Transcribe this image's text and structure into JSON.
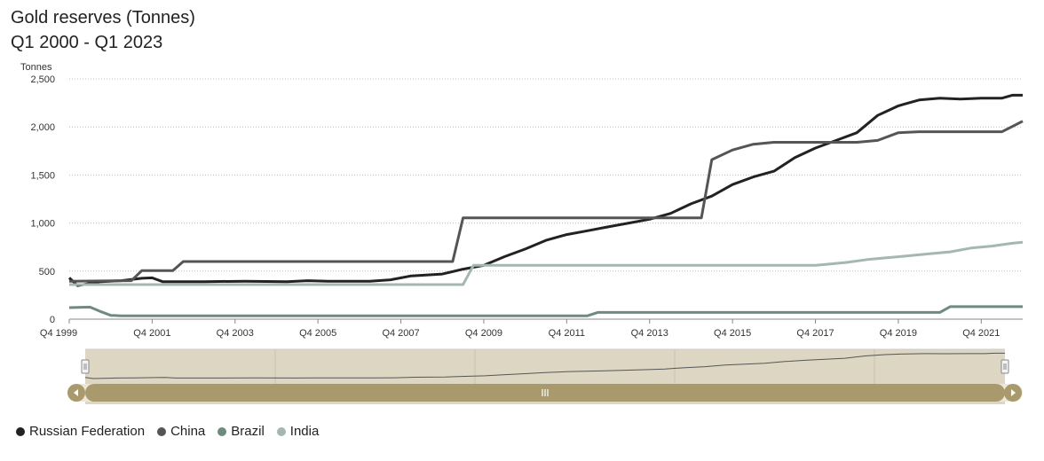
{
  "title": "Gold reserves (Tonnes)",
  "subtitle": "Q1 2000 - Q1 2023",
  "chart_data": {
    "type": "line",
    "ylabel": "Tonnes",
    "ylim": [
      0,
      2500
    ],
    "yticks": [
      0,
      500,
      1000,
      1500,
      2000,
      2500
    ],
    "ytick_labels": [
      "0",
      "500",
      "1,000",
      "1,500",
      "2,000",
      "2,500"
    ],
    "xlim": [
      1999.75,
      2022.75
    ],
    "xticks": [
      1999.75,
      2001.75,
      2003.75,
      2005.75,
      2007.75,
      2009.75,
      2011.75,
      2013.75,
      2015.75,
      2017.75,
      2019.75,
      2021.75
    ],
    "xtick_labels": [
      "Q4 1999",
      "Q4 2001",
      "Q4 2003",
      "Q4 2005",
      "Q4 2007",
      "Q4 2009",
      "Q4 2011",
      "Q4 2013",
      "Q4 2015",
      "Q4 2017",
      "Q4 2019",
      "Q4 2021"
    ],
    "grid": true,
    "legend_position": "bottom-left",
    "series": [
      {
        "name": "Russian Federation",
        "color": "#222222",
        "points": [
          [
            1999.75,
            430
          ],
          [
            1999.95,
            350
          ],
          [
            2000.5,
            390
          ],
          [
            2001.0,
            400
          ],
          [
            2001.5,
            425
          ],
          [
            2001.75,
            430
          ],
          [
            2002.0,
            390
          ],
          [
            2003.0,
            390
          ],
          [
            2004.0,
            395
          ],
          [
            2005.0,
            390
          ],
          [
            2005.5,
            400
          ],
          [
            2006.0,
            395
          ],
          [
            2007.0,
            395
          ],
          [
            2007.5,
            410
          ],
          [
            2008.0,
            450
          ],
          [
            2008.75,
            470
          ],
          [
            2009.25,
            520
          ],
          [
            2009.75,
            560
          ],
          [
            2010.25,
            650
          ],
          [
            2010.75,
            730
          ],
          [
            2011.25,
            820
          ],
          [
            2011.75,
            880
          ],
          [
            2012.25,
            920
          ],
          [
            2012.75,
            960
          ],
          [
            2013.25,
            1000
          ],
          [
            2013.75,
            1040
          ],
          [
            2014.25,
            1100
          ],
          [
            2014.75,
            1200
          ],
          [
            2015.25,
            1280
          ],
          [
            2015.75,
            1400
          ],
          [
            2016.25,
            1480
          ],
          [
            2016.75,
            1540
          ],
          [
            2017.25,
            1680
          ],
          [
            2017.75,
            1780
          ],
          [
            2018.25,
            1860
          ],
          [
            2018.75,
            1940
          ],
          [
            2019.25,
            2120
          ],
          [
            2019.75,
            2220
          ],
          [
            2020.25,
            2280
          ],
          [
            2020.75,
            2300
          ],
          [
            2021.25,
            2290
          ],
          [
            2021.75,
            2300
          ],
          [
            2022.25,
            2300
          ],
          [
            2022.5,
            2330
          ],
          [
            2022.75,
            2330
          ]
        ]
      },
      {
        "name": "China",
        "color": "#555555",
        "points": [
          [
            1999.75,
            395
          ],
          [
            2001.25,
            400
          ],
          [
            2001.5,
            505
          ],
          [
            2002.25,
            505
          ],
          [
            2002.5,
            600
          ],
          [
            2009.0,
            600
          ],
          [
            2009.25,
            1054
          ],
          [
            2015.0,
            1054
          ],
          [
            2015.25,
            1660
          ],
          [
            2015.75,
            1760
          ],
          [
            2016.25,
            1820
          ],
          [
            2016.75,
            1840
          ],
          [
            2017.75,
            1840
          ],
          [
            2018.75,
            1840
          ],
          [
            2019.25,
            1860
          ],
          [
            2019.75,
            1940
          ],
          [
            2020.25,
            1950
          ],
          [
            2022.25,
            1950
          ],
          [
            2022.75,
            2060
          ]
        ]
      },
      {
        "name": "Brazil",
        "color": "#6e8b7e",
        "points": [
          [
            1999.75,
            120
          ],
          [
            2000.25,
            125
          ],
          [
            2000.5,
            80
          ],
          [
            2000.75,
            40
          ],
          [
            2001.0,
            35
          ],
          [
            2011.75,
            35
          ],
          [
            2012.25,
            35
          ],
          [
            2012.5,
            70
          ],
          [
            2020.75,
            70
          ],
          [
            2021.0,
            130
          ],
          [
            2022.75,
            130
          ]
        ]
      },
      {
        "name": "India",
        "color": "#a4b8b0",
        "points": [
          [
            1999.75,
            360
          ],
          [
            2009.25,
            360
          ],
          [
            2009.5,
            560
          ],
          [
            2017.75,
            560
          ],
          [
            2018.0,
            570
          ],
          [
            2018.5,
            590
          ],
          [
            2019.0,
            620
          ],
          [
            2019.5,
            640
          ],
          [
            2020.0,
            660
          ],
          [
            2020.5,
            680
          ],
          [
            2021.0,
            700
          ],
          [
            2021.5,
            740
          ],
          [
            2022.0,
            760
          ],
          [
            2022.5,
            790
          ],
          [
            2022.75,
            800
          ]
        ]
      }
    ]
  }
}
